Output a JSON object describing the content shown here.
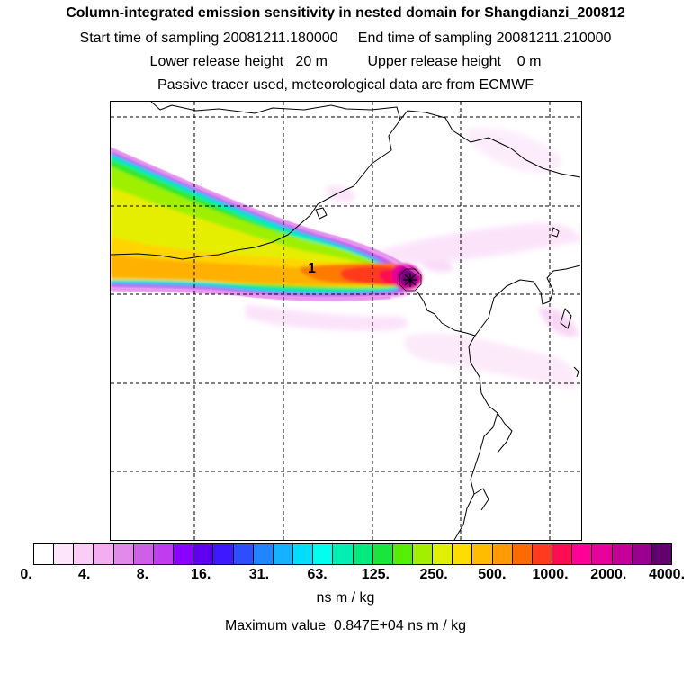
{
  "header": {
    "title": "Column-integrated emission sensitivity in nested domain for Shangdianzi_200812",
    "line2": "Start time of sampling 20081211.180000     End time of sampling 20081211.210000",
    "line3": "Lower release height   20 m          Upper release height    0 m",
    "line4": "Passive tracer used, meteorological data are from ECMWF"
  },
  "map": {
    "release_label": "1",
    "release_marker": "asterisk-icon"
  },
  "colorbar": {
    "colors": [
      "#ffffff",
      "#fde6fb",
      "#f9cdf6",
      "#f3aef1",
      "#e289ec",
      "#d15ee9",
      "#c13cf0",
      "#8c00ff",
      "#5f00f0",
      "#3e19ff",
      "#2d4dff",
      "#1f86ff",
      "#14b2ff",
      "#00ddff",
      "#00ffee",
      "#00f0b4",
      "#00ea80",
      "#19e63c",
      "#55ee00",
      "#a2f000",
      "#dff000",
      "#ffdd00",
      "#ffbc00",
      "#ff9a00",
      "#ff6a00",
      "#ff3a1e",
      "#ff0d50",
      "#ff0099",
      "#e8009a",
      "#c5009a",
      "#9a0090",
      "#630070"
    ],
    "tick_labels": [
      "0.",
      "4.",
      "8.",
      "16.",
      "31.",
      "63.",
      "125.",
      "250.",
      "500.",
      "1000.",
      "2000.",
      "4000."
    ],
    "units": "ns m / kg",
    "max_value_text": "Maximum value  0.847E+04 ns m / kg"
  }
}
